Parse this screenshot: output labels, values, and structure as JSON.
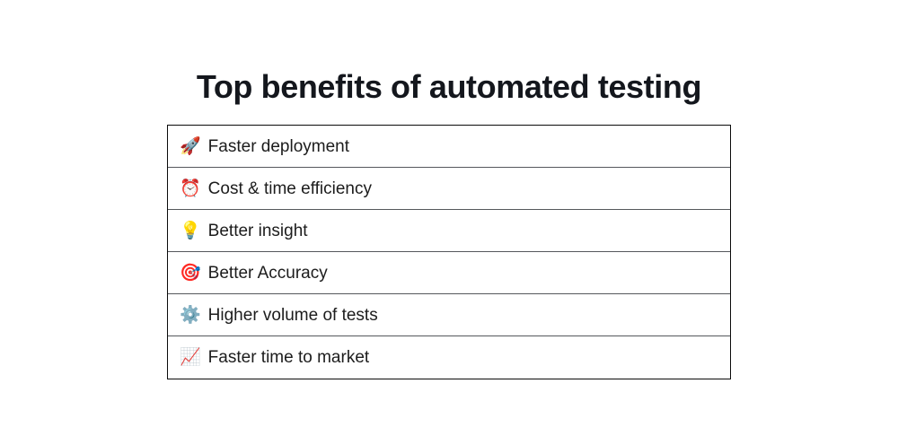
{
  "page": {
    "title": "Top benefits of automated testing"
  },
  "benefits": {
    "items": [
      {
        "icon": "🚀",
        "icon_name": "rocket-icon",
        "label": "Faster deployment"
      },
      {
        "icon": "⏰",
        "icon_name": "alarm-clock-icon",
        "label": "Cost & time efficiency"
      },
      {
        "icon": "💡",
        "icon_name": "light-bulb-icon",
        "label": "Better insight"
      },
      {
        "icon": "🎯",
        "icon_name": "dart-target-icon",
        "label": "Better Accuracy"
      },
      {
        "icon": "⚙️",
        "icon_name": "gear-icon",
        "label": "Higher volume of tests"
      },
      {
        "icon": "📈",
        "icon_name": "chart-increasing-icon",
        "label": "Faster time to market"
      }
    ]
  },
  "colors": {
    "background": "#ffffff",
    "title_text": "#14171d",
    "row_text": "#1c1c1c",
    "outer_border": "#0b0b0b",
    "row_divider": "#55585c"
  }
}
